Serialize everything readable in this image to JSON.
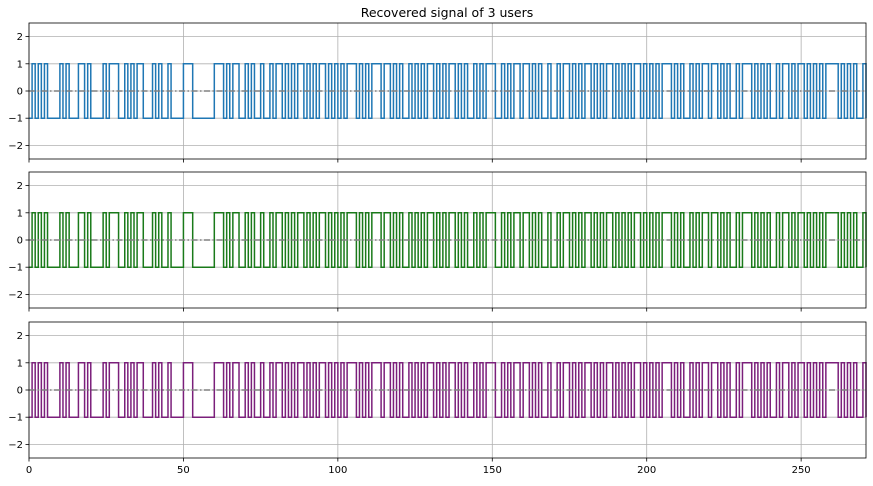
{
  "figure": {
    "title": "Recovered signal of 3 users"
  },
  "chart_data": [
    {
      "type": "line",
      "step": "post",
      "title": "Recovered signal of 3 users",
      "xlabel": "",
      "ylabel": "",
      "xlim": [
        0,
        271
      ],
      "ylim": [
        -2.5,
        2.5
      ],
      "yticks": [
        -2,
        -1,
        0,
        1,
        2
      ],
      "xticks": [
        0,
        50,
        100,
        150,
        200,
        250
      ],
      "show_xtick_labels": false,
      "grid": true,
      "zero_line": {
        "y": 0,
        "style": "dash-dot",
        "color": "#808080"
      },
      "series": [
        {
          "color": "#1f77b4",
          "y": [
            -1,
            1,
            -1,
            1,
            -1,
            1,
            -1,
            -1,
            -1,
            -1,
            1,
            -1,
            1,
            -1,
            -1,
            -1,
            1,
            1,
            -1,
            1,
            -1,
            -1,
            -1,
            -1,
            1,
            -1,
            1,
            1,
            1,
            -1,
            -1,
            1,
            -1,
            1,
            -1,
            1,
            1,
            -1,
            -1,
            -1,
            1,
            -1,
            1,
            -1,
            -1,
            1,
            -1,
            -1,
            -1,
            -1,
            1,
            1,
            1,
            -1,
            -1,
            -1,
            -1,
            -1,
            -1,
            -1,
            1,
            1,
            1,
            -1,
            1,
            -1,
            1,
            1,
            -1,
            -1,
            1,
            -1,
            1,
            -1,
            -1,
            1,
            -1,
            -1,
            1,
            -1,
            1,
            1,
            -1,
            1,
            -1,
            1,
            -1,
            1,
            1,
            -1,
            1,
            -1,
            1,
            -1,
            1,
            1,
            -1,
            1,
            -1,
            1,
            -1,
            1,
            -1,
            1,
            1,
            1,
            -1,
            1,
            -1,
            1,
            -1,
            1,
            1,
            1,
            -1,
            1,
            1,
            -1,
            1,
            -1,
            1,
            -1,
            -1,
            1,
            -1,
            1,
            -1,
            1,
            -1,
            1,
            1,
            -1,
            1,
            -1,
            1,
            -1,
            1,
            1,
            -1,
            1,
            -1,
            1,
            -1,
            -1,
            1,
            -1,
            1,
            -1,
            1,
            1,
            1,
            -1,
            -1,
            1,
            -1,
            1,
            -1,
            1,
            1,
            -1,
            1,
            1,
            -1,
            1,
            -1,
            1,
            -1,
            -1,
            1,
            -1,
            -1,
            1,
            -1,
            1,
            1,
            -1,
            1,
            -1,
            1,
            -1,
            1,
            1,
            -1,
            1,
            -1,
            1,
            -1,
            1,
            1,
            -1,
            1,
            -1,
            1,
            -1,
            1,
            -1,
            1,
            1,
            -1,
            1,
            -1,
            1,
            -1,
            1,
            -1,
            1,
            1,
            1,
            -1,
            1,
            -1,
            1,
            -1,
            -1,
            1,
            -1,
            1,
            -1,
            1,
            1,
            -1,
            1,
            1,
            -1,
            1,
            -1,
            1,
            -1,
            -1,
            1,
            -1,
            1,
            1,
            1,
            -1,
            1,
            -1,
            1,
            -1,
            1,
            -1,
            -1,
            1,
            -1,
            1,
            1,
            -1,
            1,
            -1,
            1,
            1,
            -1,
            1,
            -1,
            1,
            -1,
            1,
            -1,
            1,
            1,
            1,
            1,
            -1,
            1,
            -1,
            1,
            -1,
            1,
            -1,
            -1,
            1,
            -1,
            -1,
            1,
            -1,
            1,
            1,
            -1,
            1,
            -1,
            1,
            1
          ]
        }
      ]
    },
    {
      "type": "line",
      "step": "post",
      "xlabel": "",
      "ylabel": "",
      "xlim": [
        0,
        271
      ],
      "ylim": [
        -2.5,
        2.5
      ],
      "yticks": [
        -2,
        -1,
        0,
        1,
        2
      ],
      "xticks": [
        0,
        50,
        100,
        150,
        200,
        250
      ],
      "show_xtick_labels": false,
      "grid": true,
      "zero_line": {
        "y": 0,
        "style": "dash-dot",
        "color": "#808080"
      },
      "series": [
        {
          "color": "#1a7a1a",
          "y": [
            -1,
            1,
            -1,
            1,
            -1,
            1,
            -1,
            -1,
            -1,
            -1,
            1,
            -1,
            1,
            -1,
            -1,
            -1,
            1,
            1,
            -1,
            1,
            -1,
            -1,
            -1,
            -1,
            1,
            -1,
            1,
            1,
            1,
            -1,
            -1,
            1,
            -1,
            1,
            -1,
            1,
            1,
            -1,
            -1,
            -1,
            1,
            -1,
            1,
            -1,
            -1,
            1,
            -1,
            -1,
            -1,
            -1,
            1,
            1,
            1,
            -1,
            -1,
            -1,
            -1,
            -1,
            -1,
            -1,
            1,
            1,
            1,
            -1,
            1,
            -1,
            1,
            1,
            -1,
            -1,
            1,
            -1,
            1,
            -1,
            -1,
            1,
            -1,
            -1,
            1,
            -1,
            1,
            1,
            -1,
            1,
            -1,
            1,
            -1,
            1,
            1,
            -1,
            1,
            -1,
            1,
            -1,
            1,
            1,
            -1,
            1,
            -1,
            1,
            -1,
            1,
            -1,
            1,
            1,
            1,
            -1,
            1,
            -1,
            1,
            -1,
            1,
            1,
            1,
            -1,
            1,
            1,
            -1,
            1,
            -1,
            1,
            -1,
            -1,
            1,
            -1,
            1,
            -1,
            1,
            -1,
            1,
            1,
            -1,
            1,
            -1,
            1,
            -1,
            1,
            1,
            -1,
            1,
            -1,
            1,
            -1,
            -1,
            1,
            -1,
            1,
            -1,
            1,
            1,
            1,
            -1,
            -1,
            1,
            -1,
            1,
            -1,
            1,
            1,
            -1,
            1,
            1,
            -1,
            1,
            -1,
            1,
            -1,
            -1,
            1,
            -1,
            -1,
            1,
            -1,
            1,
            1,
            -1,
            1,
            -1,
            1,
            -1,
            1,
            1,
            -1,
            1,
            -1,
            1,
            -1,
            1,
            1,
            -1,
            1,
            -1,
            1,
            -1,
            1,
            -1,
            1,
            1,
            -1,
            1,
            -1,
            1,
            -1,
            1,
            -1,
            1,
            1,
            1,
            -1,
            1,
            -1,
            1,
            -1,
            -1,
            1,
            -1,
            1,
            -1,
            1,
            1,
            -1,
            1,
            1,
            -1,
            1,
            -1,
            1,
            -1,
            -1,
            1,
            -1,
            1,
            1,
            1,
            -1,
            1,
            -1,
            1,
            -1,
            1,
            -1,
            -1,
            1,
            -1,
            1,
            1,
            -1,
            1,
            -1,
            1,
            1,
            -1,
            1,
            -1,
            1,
            -1,
            1,
            -1,
            1,
            1,
            1,
            1,
            -1,
            1,
            -1,
            1,
            -1,
            1,
            -1,
            -1,
            1,
            -1,
            -1,
            1,
            -1,
            1,
            1,
            -1,
            1,
            -1,
            1,
            1
          ]
        }
      ]
    },
    {
      "type": "line",
      "step": "post",
      "xlabel": "",
      "ylabel": "",
      "xlim": [
        0,
        271
      ],
      "ylim": [
        -2.5,
        2.5
      ],
      "yticks": [
        -2,
        -1,
        0,
        1,
        2
      ],
      "xticks": [
        0,
        50,
        100,
        150,
        200,
        250
      ],
      "show_xtick_labels": true,
      "grid": true,
      "zero_line": {
        "y": 0,
        "style": "dash-dot",
        "color": "#808080"
      },
      "series": [
        {
          "color": "#7b1f7b",
          "y": [
            -1,
            1,
            -1,
            1,
            -1,
            1,
            -1,
            -1,
            -1,
            -1,
            1,
            -1,
            1,
            -1,
            -1,
            -1,
            1,
            1,
            -1,
            1,
            -1,
            -1,
            -1,
            -1,
            1,
            -1,
            1,
            1,
            1,
            -1,
            -1,
            1,
            -1,
            1,
            -1,
            1,
            1,
            -1,
            -1,
            -1,
            1,
            -1,
            1,
            -1,
            -1,
            1,
            -1,
            -1,
            -1,
            -1,
            1,
            1,
            1,
            -1,
            -1,
            -1,
            -1,
            -1,
            -1,
            -1,
            1,
            1,
            1,
            -1,
            1,
            -1,
            1,
            1,
            -1,
            -1,
            1,
            -1,
            1,
            -1,
            -1,
            1,
            -1,
            -1,
            1,
            -1,
            1,
            1,
            -1,
            1,
            -1,
            1,
            -1,
            1,
            1,
            -1,
            1,
            -1,
            1,
            -1,
            1,
            1,
            -1,
            1,
            -1,
            1,
            -1,
            1,
            -1,
            1,
            1,
            1,
            -1,
            1,
            -1,
            1,
            -1,
            1,
            1,
            1,
            -1,
            1,
            1,
            -1,
            1,
            -1,
            1,
            -1,
            -1,
            1,
            -1,
            1,
            -1,
            1,
            -1,
            1,
            1,
            -1,
            1,
            -1,
            1,
            -1,
            1,
            1,
            -1,
            1,
            -1,
            1,
            -1,
            -1,
            1,
            -1,
            1,
            -1,
            1,
            1,
            1,
            -1,
            -1,
            1,
            -1,
            1,
            -1,
            1,
            1,
            -1,
            1,
            1,
            -1,
            1,
            -1,
            1,
            -1,
            -1,
            1,
            -1,
            -1,
            1,
            -1,
            1,
            1,
            -1,
            1,
            -1,
            1,
            -1,
            1,
            1,
            -1,
            1,
            -1,
            1,
            -1,
            1,
            1,
            -1,
            1,
            -1,
            1,
            -1,
            1,
            -1,
            1,
            1,
            -1,
            1,
            -1,
            1,
            -1,
            1,
            -1,
            1,
            1,
            1,
            -1,
            1,
            -1,
            1,
            -1,
            -1,
            1,
            -1,
            1,
            -1,
            1,
            1,
            -1,
            1,
            1,
            -1,
            1,
            -1,
            1,
            -1,
            -1,
            1,
            -1,
            1,
            1,
            1,
            -1,
            1,
            -1,
            1,
            -1,
            1,
            -1,
            -1,
            1,
            -1,
            1,
            1,
            -1,
            1,
            -1,
            1,
            1,
            -1,
            1,
            -1,
            1,
            -1,
            1,
            -1,
            1,
            1,
            1,
            1,
            -1,
            1,
            -1,
            1,
            -1,
            1,
            -1,
            -1,
            1,
            -1,
            -1,
            1,
            -1,
            1,
            1,
            -1,
            1,
            -1,
            1,
            1
          ]
        }
      ]
    }
  ]
}
